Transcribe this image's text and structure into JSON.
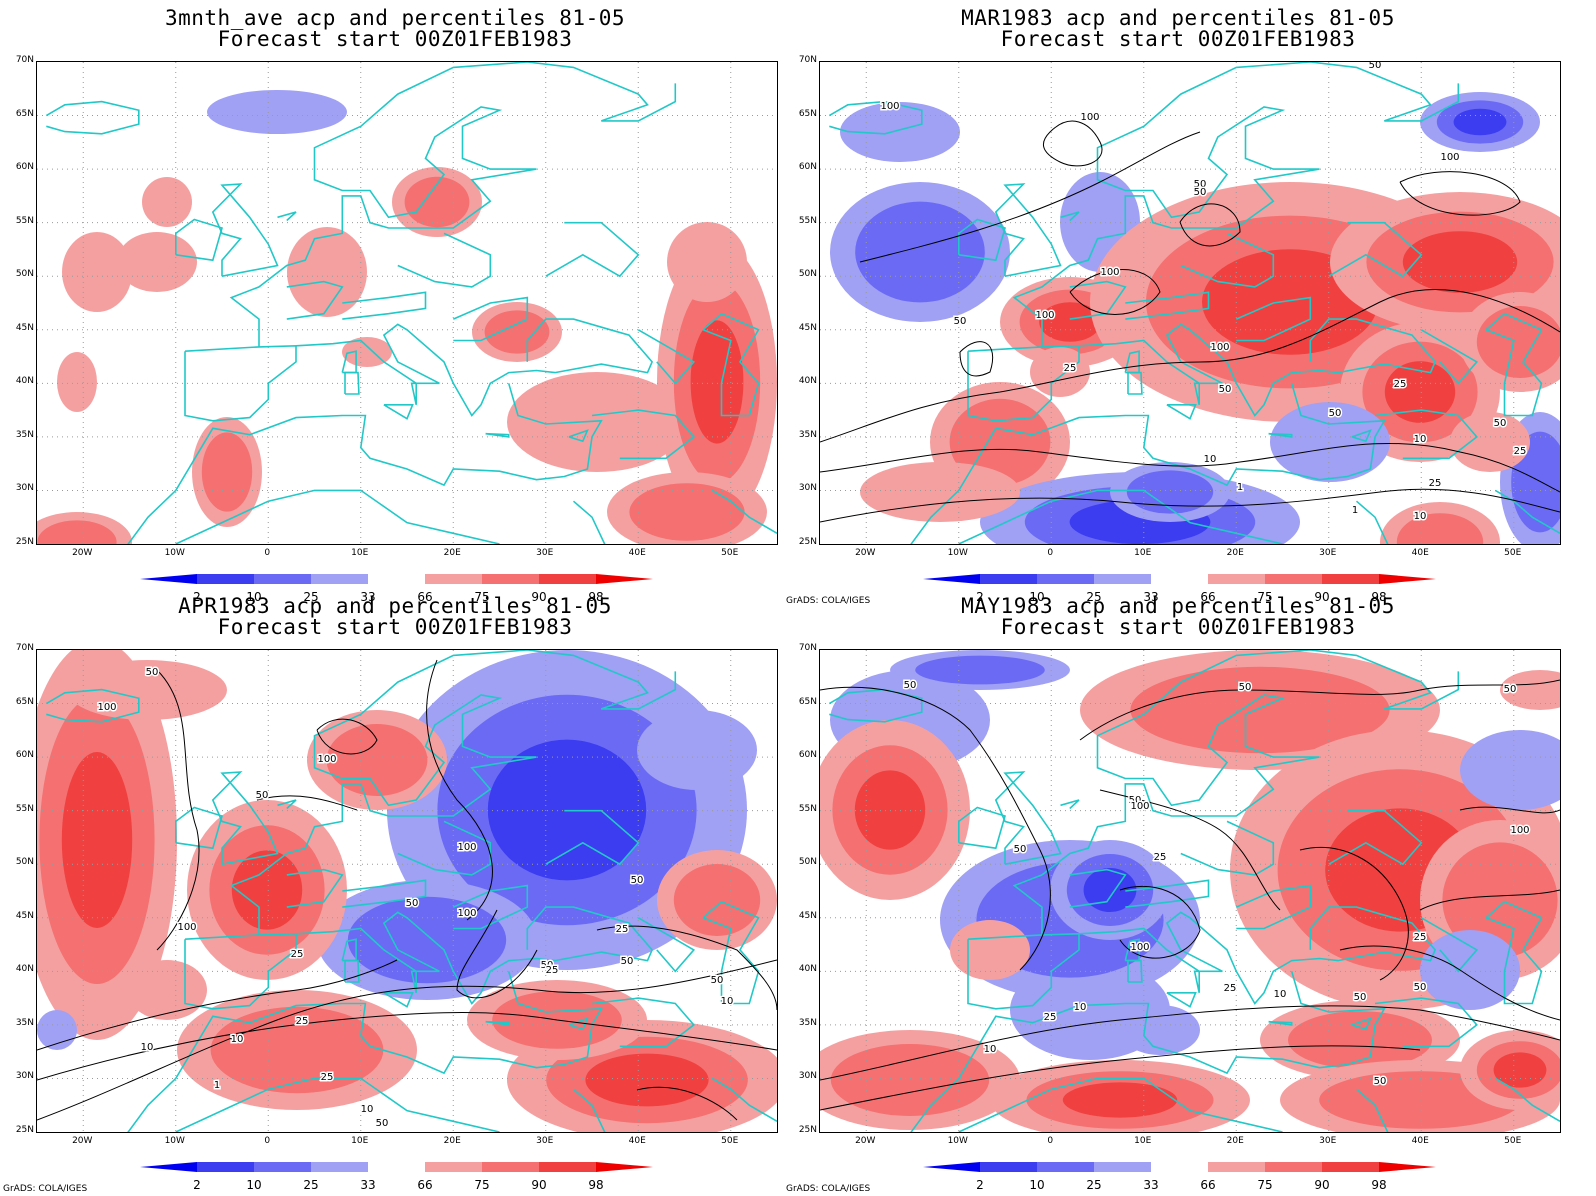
{
  "panels": [
    {
      "title": "3mnth_ave acp and percentiles 81-05",
      "subtitle": "Forecast start 00Z01FEB1983"
    },
    {
      "title": "MAR1983 acp and percentiles 81-05",
      "subtitle": "Forecast start 00Z01FEB1983"
    },
    {
      "title": "APR1983 acp and percentiles 81-05",
      "subtitle": "Forecast start 00Z01FEB1983"
    },
    {
      "title": "MAY1983 acp and percentiles 81-05",
      "subtitle": "Forecast start 00Z01FEB1983"
    }
  ],
  "lat_labels": [
    "70N",
    "65N",
    "60N",
    "55N",
    "50N",
    "45N",
    "40N",
    "35N",
    "30N",
    "25N"
  ],
  "lon_labels": [
    "20W",
    "10W",
    "0",
    "10E",
    "20E",
    "30E",
    "40E",
    "50E"
  ],
  "colorbar": {
    "labels": [
      "2",
      "10",
      "25",
      "33",
      "66",
      "75",
      "90",
      "98"
    ],
    "colors": [
      "#0000f0",
      "#3c3cf0",
      "#6a6af5",
      "#a0a0f5",
      "#ffffff",
      "#f5a0a0",
      "#f57070",
      "#f04040",
      "#ee0000"
    ]
  },
  "credit": "GrADS: COLA/IGES",
  "contour_labels": {
    "p1": [
      "50",
      "100",
      "100",
      "50",
      "50",
      "100",
      "100",
      "100",
      "50",
      "100",
      "50",
      "25",
      "50",
      "25",
      "25",
      "50",
      "25",
      "10",
      "10",
      "1",
      "1",
      "10"
    ],
    "p2": [
      "50",
      "100",
      "100",
      "50",
      "100",
      "50",
      "50",
      "100",
      "100",
      "25",
      "50",
      "25",
      "25",
      "10",
      "1",
      "10",
      "25",
      "50",
      "10",
      "50",
      "25",
      "50",
      "10"
    ],
    "p3": [
      "50",
      "50",
      "50",
      "50",
      "100",
      "100",
      "50",
      "25",
      "25",
      "25",
      "10",
      "50",
      "10",
      "100",
      "50",
      "25",
      "50",
      "10"
    ]
  },
  "colors": {
    "coast": "#22c8c8",
    "contour": "#000000",
    "grid": "#9a9a9a"
  }
}
